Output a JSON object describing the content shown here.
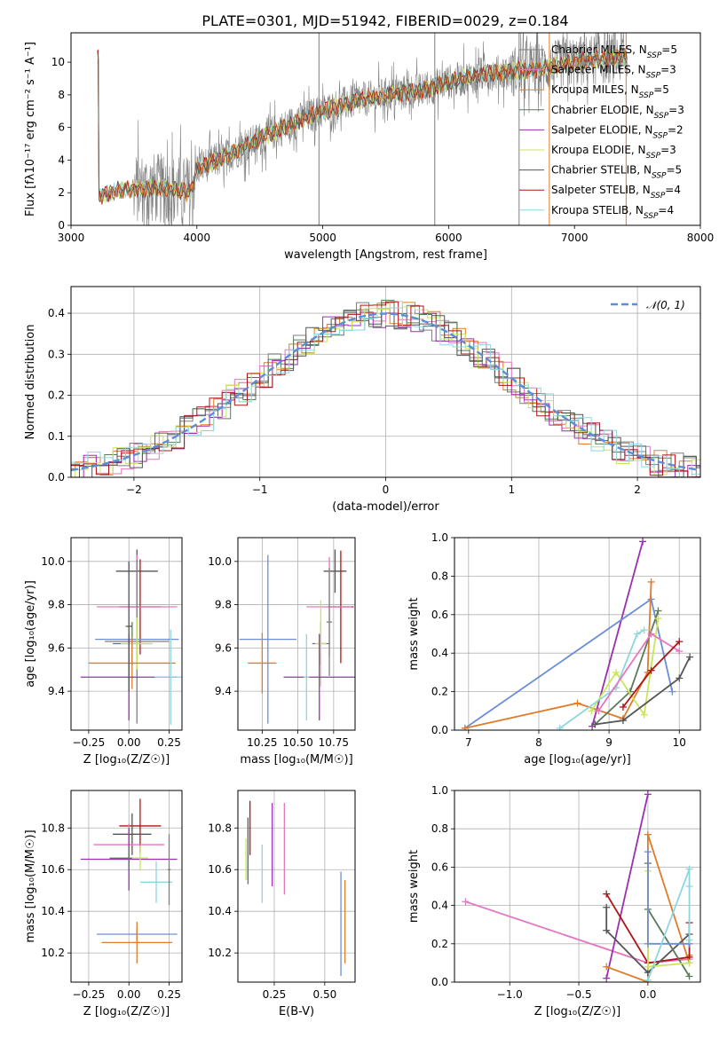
{
  "title": "PLATE=0301, MJD=51942, FIBERID=0029, z=0.184",
  "colors": {
    "chab_miles": "#7f7f7f",
    "salp_miles": "#e377c2",
    "krou_miles": "#e07b28",
    "chab_elodie": "#5a7a5a",
    "salp_elodie": "#9a2fb0",
    "krou_elodie": "#c9e65a",
    "chab_stelib": "#555555",
    "salp_stelib": "#b01515",
    "krou_stelib": "#8ed6df",
    "extra_blue": "#6b8ed6",
    "normal_curve": "#5b8ed6"
  },
  "chart_data": [
    {
      "id": "spectrum",
      "type": "line",
      "xlabel": "wavelength [Angstrom, rest frame]",
      "ylabel": "Flux [fλ10⁻¹⁷ erg cm⁻² s⁻¹ A⁻¹]",
      "xlim": [
        3000,
        8000
      ],
      "ylim": [
        0,
        11.8
      ],
      "xticks": [
        3000,
        4000,
        5000,
        6000,
        7000,
        8000
      ],
      "yticks": [
        0,
        2,
        4,
        6,
        8,
        10
      ],
      "grid": false,
      "legend": "top-right",
      "data_wavelength_range": [
        3210,
        7420
      ],
      "model_continuum": [
        [
          3220,
          1.8
        ],
        [
          3400,
          2.2
        ],
        [
          3600,
          2.3
        ],
        [
          3800,
          2.2
        ],
        [
          3950,
          2.0
        ],
        [
          4000,
          3.5
        ],
        [
          4200,
          4.1
        ],
        [
          4500,
          5.3
        ],
        [
          4800,
          6.4
        ],
        [
          5000,
          7.0
        ],
        [
          5200,
          7.5
        ],
        [
          5500,
          8.0
        ],
        [
          5800,
          8.3
        ],
        [
          6000,
          8.8
        ],
        [
          6300,
          9.3
        ],
        [
          6600,
          9.5
        ],
        [
          6800,
          9.7
        ],
        [
          7000,
          10.0
        ],
        [
          7200,
          10.2
        ],
        [
          7420,
          10.3
        ]
      ],
      "legend_entries": [
        {
          "key": "chab_miles",
          "label": "Chabrier MILES, N",
          "sub": "SSP",
          "val": "=5"
        },
        {
          "key": "salp_miles",
          "label": "Salpeter MILES, N",
          "sub": "SSP",
          "val": "=3"
        },
        {
          "key": "krou_miles",
          "label": "Kroupa MILES, N",
          "sub": "SSP",
          "val": "=5"
        },
        {
          "key": "chab_elodie",
          "label": "Chabrier ELODIE, N",
          "sub": "SSP",
          "val": "=3"
        },
        {
          "key": "salp_elodie",
          "label": "Salpeter ELODIE, N",
          "sub": "SSP",
          "val": "=2"
        },
        {
          "key": "krou_elodie",
          "label": "Kroupa ELODIE, N",
          "sub": "SSP",
          "val": "=3"
        },
        {
          "key": "chab_stelib",
          "label": "Chabrier STELIB, N",
          "sub": "SSP",
          "val": "=5"
        },
        {
          "key": "salp_stelib",
          "label": "Salpeter STELIB, N",
          "sub": "SSP",
          "val": "=4"
        },
        {
          "key": "krou_stelib",
          "label": "Kroupa STELIB, N",
          "sub": "SSP",
          "val": "=4"
        }
      ]
    },
    {
      "id": "residuals",
      "type": "line",
      "xlabel": "(data-model)/error",
      "ylabel": "Normed distribution",
      "xlim": [
        -2.5,
        2.5
      ],
      "ylim": [
        0,
        0.465
      ],
      "xticks": [
        -2,
        -1,
        0,
        1,
        2
      ],
      "yticks": [
        0.0,
        0.1,
        0.2,
        0.3,
        0.4
      ],
      "grid": true,
      "legend": "top-right",
      "legend_label": "𝒩(0, 1)",
      "bin_width": 0.1
    },
    {
      "id": "z_age",
      "type": "scatter",
      "xlabel": "Z [log₁₀(Z/Z☉)]",
      "ylabel": "age  [log₁₀(age/yr)]",
      "xlim": [
        -0.36,
        0.33
      ],
      "ylim": [
        9.22,
        10.11
      ],
      "xticks": [
        -0.25,
        0.0,
        0.25
      ],
      "xticklabels": [
        "−0.25",
        "0.00",
        "0.25"
      ],
      "yticks": [
        9.4,
        9.6,
        9.8,
        10.0
      ],
      "grid": true,
      "points": [
        {
          "c": "chab_stelib",
          "x": 0.05,
          "y": 9.955,
          "xerr": 0.13,
          "yerr": 0.1
        },
        {
          "c": "salp_stelib",
          "x": 0.07,
          "y": 9.79,
          "xerr": 0.13,
          "yerr": 0.22
        },
        {
          "c": "salp_miles",
          "x": 0.05,
          "y": 9.79,
          "xerr": 0.25,
          "yerr": 0.24
        },
        {
          "c": "chab_miles",
          "x": 0.05,
          "y": 9.63,
          "xerr": 0.2,
          "yerr": 0.38
        },
        {
          "c": "extra_blue",
          "x": 0.05,
          "y": 9.64,
          "xerr": 0.26,
          "yerr": 0.1
        },
        {
          "c": "chab_elodie",
          "x": 0.02,
          "y": 9.62,
          "xerr": 0.12,
          "yerr": 0.1
        },
        {
          "c": "krou_elodie",
          "x": 0.05,
          "y": 9.62,
          "xerr": 0.1,
          "yerr": 0.12
        },
        {
          "c": "krou_miles",
          "x": 0.02,
          "y": 9.53,
          "xerr": 0.27,
          "yerr": 0.12
        },
        {
          "c": "salp_elodie",
          "x": 0.0,
          "y": 9.465,
          "xerr": 0.3,
          "yerr": 0.2
        },
        {
          "c": "krou_stelib",
          "x": 0.26,
          "y": 9.465,
          "xerr": 0.1,
          "yerr": 0.22
        },
        {
          "c": "chab_stelib",
          "x": 0.0,
          "y": 9.7,
          "xerr": 0.02,
          "yerr": 0.3
        }
      ]
    },
    {
      "id": "mass_age",
      "type": "scatter",
      "xlabel": "mass [log₁₀(M/M☉)]",
      "ylabel": "",
      "xlim": [
        10.08,
        10.9
      ],
      "ylim": [
        9.22,
        10.11
      ],
      "xticks": [
        10.25,
        10.5,
        10.75
      ],
      "xticklabels": [
        "10.25",
        "10.50",
        "10.75"
      ],
      "yticks": [
        9.4,
        9.6,
        9.8,
        10.0
      ],
      "grid": true,
      "points": [
        {
          "c": "chab_stelib",
          "x": 10.76,
          "y": 9.955,
          "xerr": 0.08,
          "yerr": 0.1
        },
        {
          "c": "salp_stelib",
          "x": 10.8,
          "y": 9.79,
          "xerr": 0.09,
          "yerr": 0.26
        },
        {
          "c": "salp_miles",
          "x": 10.72,
          "y": 9.79,
          "xerr": 0.16,
          "yerr": 0.23
        },
        {
          "c": "extra_blue",
          "x": 10.29,
          "y": 9.64,
          "xerr": 0.2,
          "yerr": 0.39
        },
        {
          "c": "chab_elodie",
          "x": 10.66,
          "y": 9.62,
          "xerr": 0.06,
          "yerr": 0.1
        },
        {
          "c": "krou_elodie",
          "x": 10.66,
          "y": 9.62,
          "xerr": 0.04,
          "yerr": 0.2
        },
        {
          "c": "krou_miles",
          "x": 10.25,
          "y": 9.53,
          "xerr": 0.1,
          "yerr": 0.14
        },
        {
          "c": "salp_elodie",
          "x": 10.65,
          "y": 9.465,
          "xerr": 0.25,
          "yerr": 0.2
        },
        {
          "c": "krou_stelib",
          "x": 10.56,
          "y": 9.465,
          "xerr": 0.02,
          "yerr": 0.2
        },
        {
          "c": "chab_miles",
          "x": 10.72,
          "y": 9.72,
          "xerr": 0.02,
          "yerr": 0.25
        }
      ]
    },
    {
      "id": "age_weight",
      "type": "line",
      "xlabel": "age  [log₁₀(age/yr)]",
      "ylabel": "mass weight",
      "xlim": [
        6.8,
        10.3
      ],
      "ylim": [
        0,
        1.0
      ],
      "xticks": [
        7,
        8,
        9,
        10
      ],
      "yticks": [
        0.0,
        0.2,
        0.4,
        0.6,
        0.8,
        1.0
      ],
      "grid": true,
      "series": [
        {
          "c": "salp_elodie",
          "x": [
            8.76,
            9.48
          ],
          "y": [
            0.02,
            0.98
          ]
        },
        {
          "c": "extra_blue",
          "x": [
            6.95,
            9.6,
            9.9
          ],
          "y": [
            0.01,
            0.68,
            0.2
          ]
        },
        {
          "c": "krou_miles",
          "x": [
            6.95,
            8.55,
            9.2,
            9.55,
            9.6
          ],
          "y": [
            0.01,
            0.14,
            0.06,
            0.3,
            0.77
          ]
        },
        {
          "c": "chab_elodie",
          "x": [
            8.8,
            9.3,
            9.7
          ],
          "y": [
            0.03,
            0.2,
            0.62
          ]
        },
        {
          "c": "krou_elodie",
          "x": [
            8.75,
            9.1,
            9.5,
            9.7
          ],
          "y": [
            0.1,
            0.3,
            0.08,
            0.58
          ]
        },
        {
          "c": "krou_stelib",
          "x": [
            8.3,
            9.1,
            9.4,
            9.5
          ],
          "y": [
            0.01,
            0.22,
            0.5,
            0.52
          ]
        },
        {
          "c": "salp_miles",
          "x": [
            8.85,
            9.6,
            10.0
          ],
          "y": [
            0.1,
            0.5,
            0.41
          ]
        },
        {
          "c": "salp_stelib",
          "x": [
            9.2,
            9.6,
            10.0
          ],
          "y": [
            0.12,
            0.31,
            0.46
          ]
        },
        {
          "c": "chab_stelib",
          "x": [
            8.8,
            9.2,
            10.0,
            10.15
          ],
          "y": [
            0.03,
            0.05,
            0.27,
            0.38
          ]
        }
      ]
    },
    {
      "id": "z_mass",
      "type": "scatter",
      "xlabel": "Z [log₁₀(Z/Z☉)]",
      "ylabel": "mass [log₁₀(M/M☉)]",
      "xlim": [
        -0.36,
        0.33
      ],
      "ylim": [
        10.06,
        10.98
      ],
      "xticks": [
        -0.25,
        0.0,
        0.25
      ],
      "xticklabels": [
        "−0.25",
        "0.00",
        "0.25"
      ],
      "yticks": [
        10.2,
        10.4,
        10.6,
        10.8
      ],
      "grid": true,
      "points": [
        {
          "c": "salp_stelib",
          "x": 0.07,
          "y": 10.81,
          "xerr": 0.13,
          "yerr": 0.13
        },
        {
          "c": "chab_stelib",
          "x": 0.02,
          "y": 10.77,
          "xerr": 0.12,
          "yerr": 0.1
        },
        {
          "c": "salp_miles",
          "x": 0.0,
          "y": 10.72,
          "xerr": 0.22,
          "yerr": 0.1
        },
        {
          "c": "salp_elodie",
          "x": 0.0,
          "y": 10.65,
          "xerr": 0.3,
          "yerr": 0.15
        },
        {
          "c": "chab_elodie",
          "x": 0.0,
          "y": 10.655,
          "xerr": 0.12,
          "yerr": 0.05
        },
        {
          "c": "krou_elodie",
          "x": 0.07,
          "y": 10.655,
          "xerr": 0.05,
          "yerr": 0.06
        },
        {
          "c": "krou_stelib",
          "x": 0.17,
          "y": 10.54,
          "xerr": 0.1,
          "yerr": 0.1
        },
        {
          "c": "extra_blue",
          "x": 0.05,
          "y": 10.29,
          "xerr": 0.25,
          "yerr": 0.03
        },
        {
          "c": "krou_miles",
          "x": 0.05,
          "y": 10.25,
          "xerr": 0.22,
          "yerr": 0.1
        },
        {
          "c": "chab_miles",
          "x": 0.25,
          "y": 10.6,
          "xerr": 0.01,
          "yerr": 0.17
        }
      ]
    },
    {
      "id": "ebv_mass",
      "type": "scatter",
      "xlabel": "E(B-V)",
      "ylabel": "",
      "xlim": [
        0.07,
        0.65
      ],
      "ylim": [
        10.06,
        10.98
      ],
      "xticks": [
        0.25,
        0.5
      ],
      "xticklabels": [
        "0.25",
        "0.50"
      ],
      "yticks": [
        10.2,
        10.4,
        10.6,
        10.8
      ],
      "grid": true,
      "points": [
        {
          "c": "salp_stelib",
          "x": 0.13,
          "y": 10.8,
          "xerr": 0,
          "yerr": 0.13
        },
        {
          "c": "chab_stelib",
          "x": 0.12,
          "y": 10.7,
          "xerr": 0,
          "yerr": 0.15
        },
        {
          "c": "krou_elodie",
          "x": 0.11,
          "y": 10.65,
          "xerr": 0,
          "yerr": 0.1
        },
        {
          "c": "chab_elodie",
          "x": 0.12,
          "y": 10.6,
          "xerr": 0,
          "yerr": 0.07
        },
        {
          "c": "krou_stelib",
          "x": 0.19,
          "y": 10.58,
          "xerr": 0,
          "yerr": 0.14
        },
        {
          "c": "salp_elodie",
          "x": 0.24,
          "y": 10.72,
          "xerr": 0,
          "yerr": 0.2
        },
        {
          "c": "salp_miles",
          "x": 0.3,
          "y": 10.7,
          "xerr": 0,
          "yerr": 0.22
        },
        {
          "c": "extra_blue",
          "x": 0.58,
          "y": 10.34,
          "xerr": 0,
          "yerr": 0.25
        },
        {
          "c": "krou_miles",
          "x": 0.6,
          "y": 10.35,
          "xerr": 0,
          "yerr": 0.2
        }
      ]
    },
    {
      "id": "z_weight",
      "type": "line",
      "xlabel": "Z [log₁₀(Z/Z☉)]",
      "ylabel": "mass weight",
      "xlim": [
        -1.4,
        0.38
      ],
      "ylim": [
        0,
        1.0
      ],
      "xticks": [
        -1.0,
        -0.5,
        0.0
      ],
      "xticklabels": [
        "−1.0",
        "−0.5",
        "0.0"
      ],
      "yticks": [
        0.0,
        0.2,
        0.4,
        0.6,
        0.8,
        1.0
      ],
      "grid": true,
      "series": [
        {
          "c": "salp_miles",
          "x": [
            -1.32,
            0.0,
            0.3
          ],
          "y": [
            0.42,
            0.1,
            0.12
          ]
        },
        {
          "c": "salp_elodie",
          "x": [
            -0.3,
            0.0
          ],
          "y": [
            0.02,
            0.98
          ]
        },
        {
          "c": "krou_miles",
          "x": [
            -0.3,
            0.0,
            0.0,
            0.3,
            0.3
          ],
          "y": [
            0.08,
            0.0,
            0.77,
            0.1,
            0.14
          ]
        },
        {
          "c": "salp_stelib",
          "x": [
            -0.3,
            0.0,
            0.3,
            0.3
          ],
          "y": [
            0.46,
            0.1,
            0.13,
            0.31
          ]
        },
        {
          "c": "chab_stelib",
          "x": [
            -0.3,
            -0.3,
            0.0,
            0.3
          ],
          "y": [
            0.39,
            0.27,
            0.05,
            0.25
          ]
        },
        {
          "c": "chab_elodie",
          "x": [
            0.0,
            0.0,
            0.3
          ],
          "y": [
            0.62,
            0.38,
            0.03
          ]
        },
        {
          "c": "krou_elodie",
          "x": [
            0.0,
            0.0,
            0.3
          ],
          "y": [
            0.58,
            0.08,
            0.1
          ]
        },
        {
          "c": "extra_blue",
          "x": [
            0.0,
            0.0,
            0.3
          ],
          "y": [
            0.68,
            0.2,
            0.2
          ]
        },
        {
          "c": "krou_stelib",
          "x": [
            0.0,
            0.3,
            0.3,
            0.3
          ],
          "y": [
            0.01,
            0.59,
            0.5,
            0.22
          ]
        }
      ]
    }
  ]
}
